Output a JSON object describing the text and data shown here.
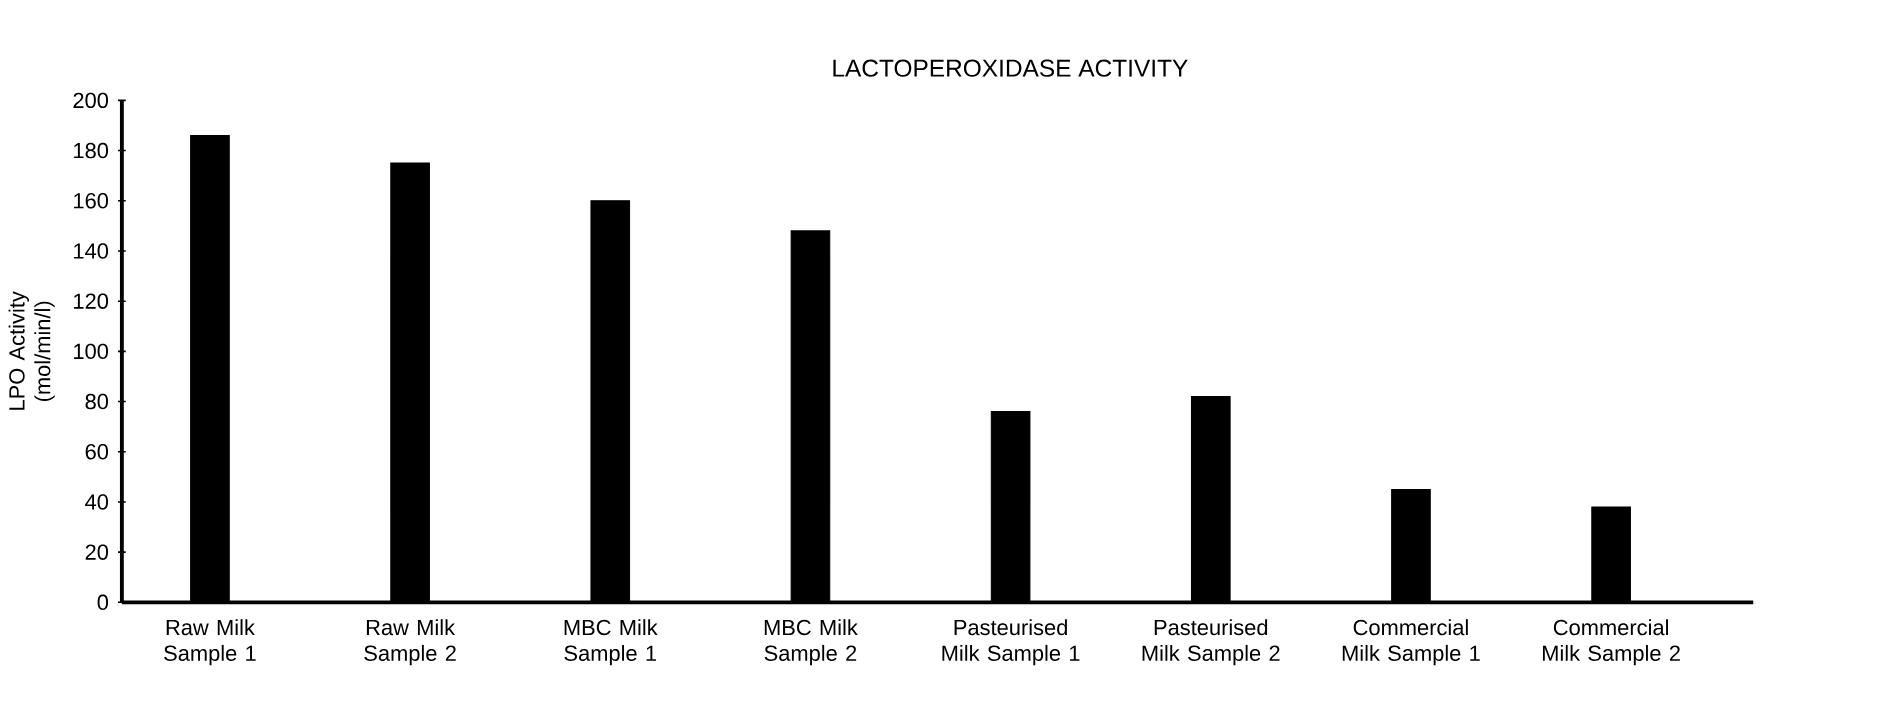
{
  "chart_data": {
    "type": "bar",
    "title": "LACTOPEROXIDASE ACTIVITY",
    "ylabel": "LPO Activity (mol/min/l)",
    "categories": [
      "Raw Milk Sample 1",
      "Raw Milk Sample 2",
      "MBC Milk Sample 1",
      "MBC Milk Sample 2",
      "Pasteurised Milk Sample 1",
      "Pasteurised Milk Sample 2",
      "Commercial Milk Sample 1",
      "Commercial Milk Sample 2"
    ],
    "values": [
      186,
      175,
      160,
      148,
      76,
      82,
      45,
      38
    ],
    "color": "#000000",
    "ylim": [
      0,
      200
    ],
    "yticks": [
      0,
      20,
      40,
      60,
      80,
      100,
      120,
      140,
      160,
      180,
      200
    ],
    "grid": false
  }
}
